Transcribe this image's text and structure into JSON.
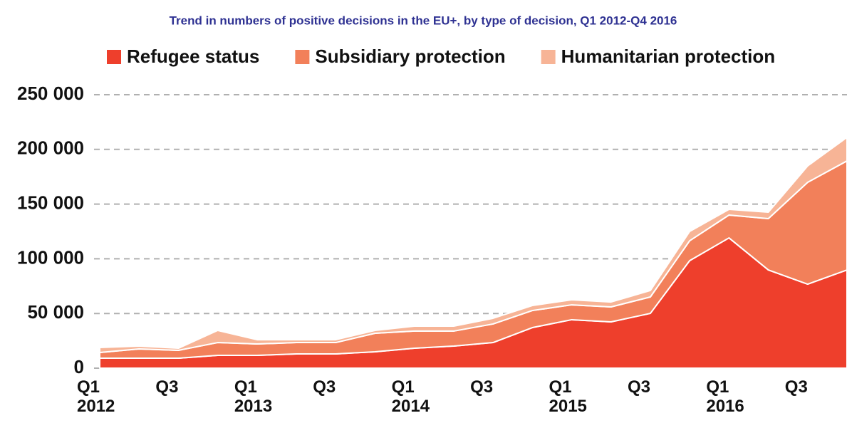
{
  "chart_data": {
    "type": "stacked_area",
    "title": "Trend in numbers of positive decisions in the EU+, by type of decision, Q1 2012-Q4 2016",
    "categories": [
      "Q1\n2012",
      null,
      "Q3",
      null,
      "Q1\n2013",
      null,
      "Q3",
      null,
      "Q1\n2014",
      null,
      "Q3",
      null,
      "Q1\n2015",
      null,
      "Q3",
      null,
      "Q1\n2016",
      null,
      "Q3",
      null
    ],
    "series": [
      {
        "name": "Refugee status",
        "color": "#ee3f2c",
        "values": [
          9100,
          9100,
          9100,
          11700,
          11700,
          13000,
          13000,
          15000,
          18200,
          20200,
          23400,
          37100,
          44300,
          42300,
          50100,
          98300,
          119100,
          89800,
          76800,
          89800
        ]
      },
      {
        "name": "Subsidiary protection",
        "color": "#f2805a",
        "values": [
          5200,
          8500,
          7200,
          11700,
          10400,
          10400,
          10400,
          16900,
          15700,
          13700,
          17000,
          15600,
          13600,
          13700,
          15000,
          18200,
          20900,
          46900,
          93100,
          99700
        ]
      },
      {
        "name": "Humanitarian protection",
        "color": "#f7b496",
        "values": [
          4600,
          2600,
          1900,
          11100,
          3900,
          2600,
          2600,
          2600,
          4500,
          4500,
          5200,
          4600,
          4600,
          4500,
          5900,
          8500,
          5200,
          5900,
          15000,
          21500
        ]
      }
    ],
    "ylim": [
      0,
      250000
    ],
    "yticks": [
      0,
      {
        "value": 50000,
        "label": "50 000"
      },
      {
        "value": 100000,
        "label": "100 000"
      },
      {
        "value": 150000,
        "label": "150 000"
      },
      {
        "value": 200000,
        "label": "200 000"
      },
      {
        "value": 250000,
        "label": "250 000"
      }
    ],
    "grid": true
  }
}
